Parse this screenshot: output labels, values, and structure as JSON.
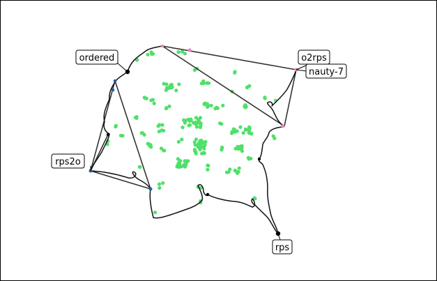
{
  "colors": {
    "cluster": "#4fe06a",
    "path": "#111111",
    "chord": "#333333",
    "pink": "#e884c0",
    "blue": "#1f5fa8"
  },
  "labels": {
    "ordered": "ordered",
    "o2rps": "o2rps",
    "nauty7": "nauty-7",
    "rps2o": "rps2o",
    "rps": "rps"
  }
}
